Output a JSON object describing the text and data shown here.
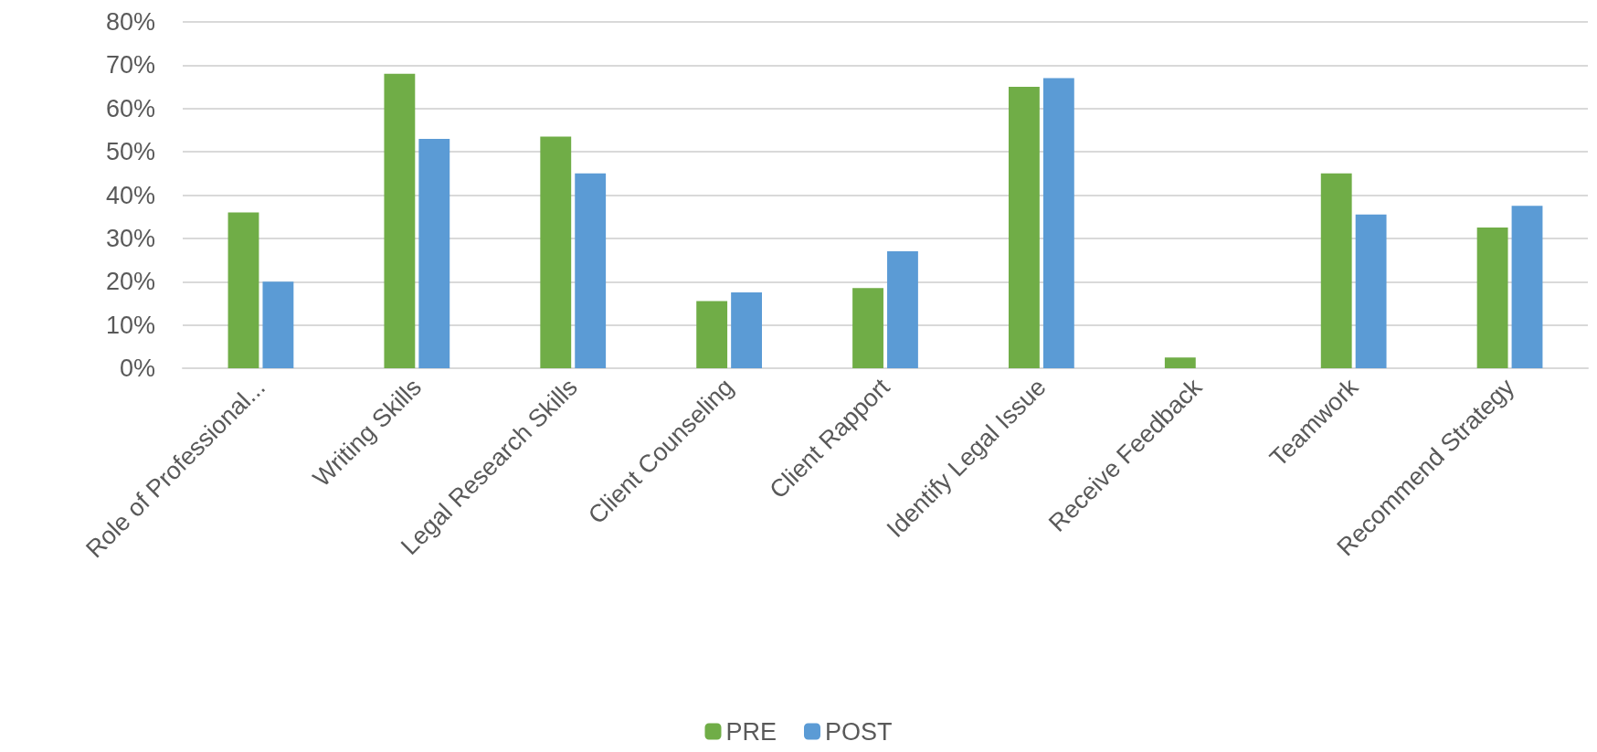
{
  "chart_data": {
    "type": "bar",
    "categories": [
      "Role of Professional...",
      "Writing Skills",
      "Legal Research Skills",
      "Client Counseling",
      "Client Rapport",
      "Identify Legal Issue",
      "Receive Feedback",
      "Teamwork",
      "Recommend Strategy"
    ],
    "series": [
      {
        "name": "PRE",
        "color": "#70ad47",
        "values": [
          36,
          68,
          53.5,
          15.5,
          18.5,
          65,
          2.5,
          45,
          32.5
        ]
      },
      {
        "name": "POST",
        "color": "#5b9bd5",
        "values": [
          20,
          53,
          45,
          17.5,
          27,
          67,
          0,
          35.5,
          37.5
        ]
      }
    ],
    "ylim": [
      0,
      80
    ],
    "yticks": [
      {
        "value": 0,
        "label": "0%"
      },
      {
        "value": 10,
        "label": "10%"
      },
      {
        "value": 20,
        "label": "20%"
      },
      {
        "value": 30,
        "label": "30%"
      },
      {
        "value": 40,
        "label": "40%"
      },
      {
        "value": 50,
        "label": "50%"
      },
      {
        "value": 60,
        "label": "60%"
      },
      {
        "value": 70,
        "label": "70%"
      },
      {
        "value": 80,
        "label": "80%"
      }
    ],
    "grid": "y",
    "legend": "bottom"
  }
}
